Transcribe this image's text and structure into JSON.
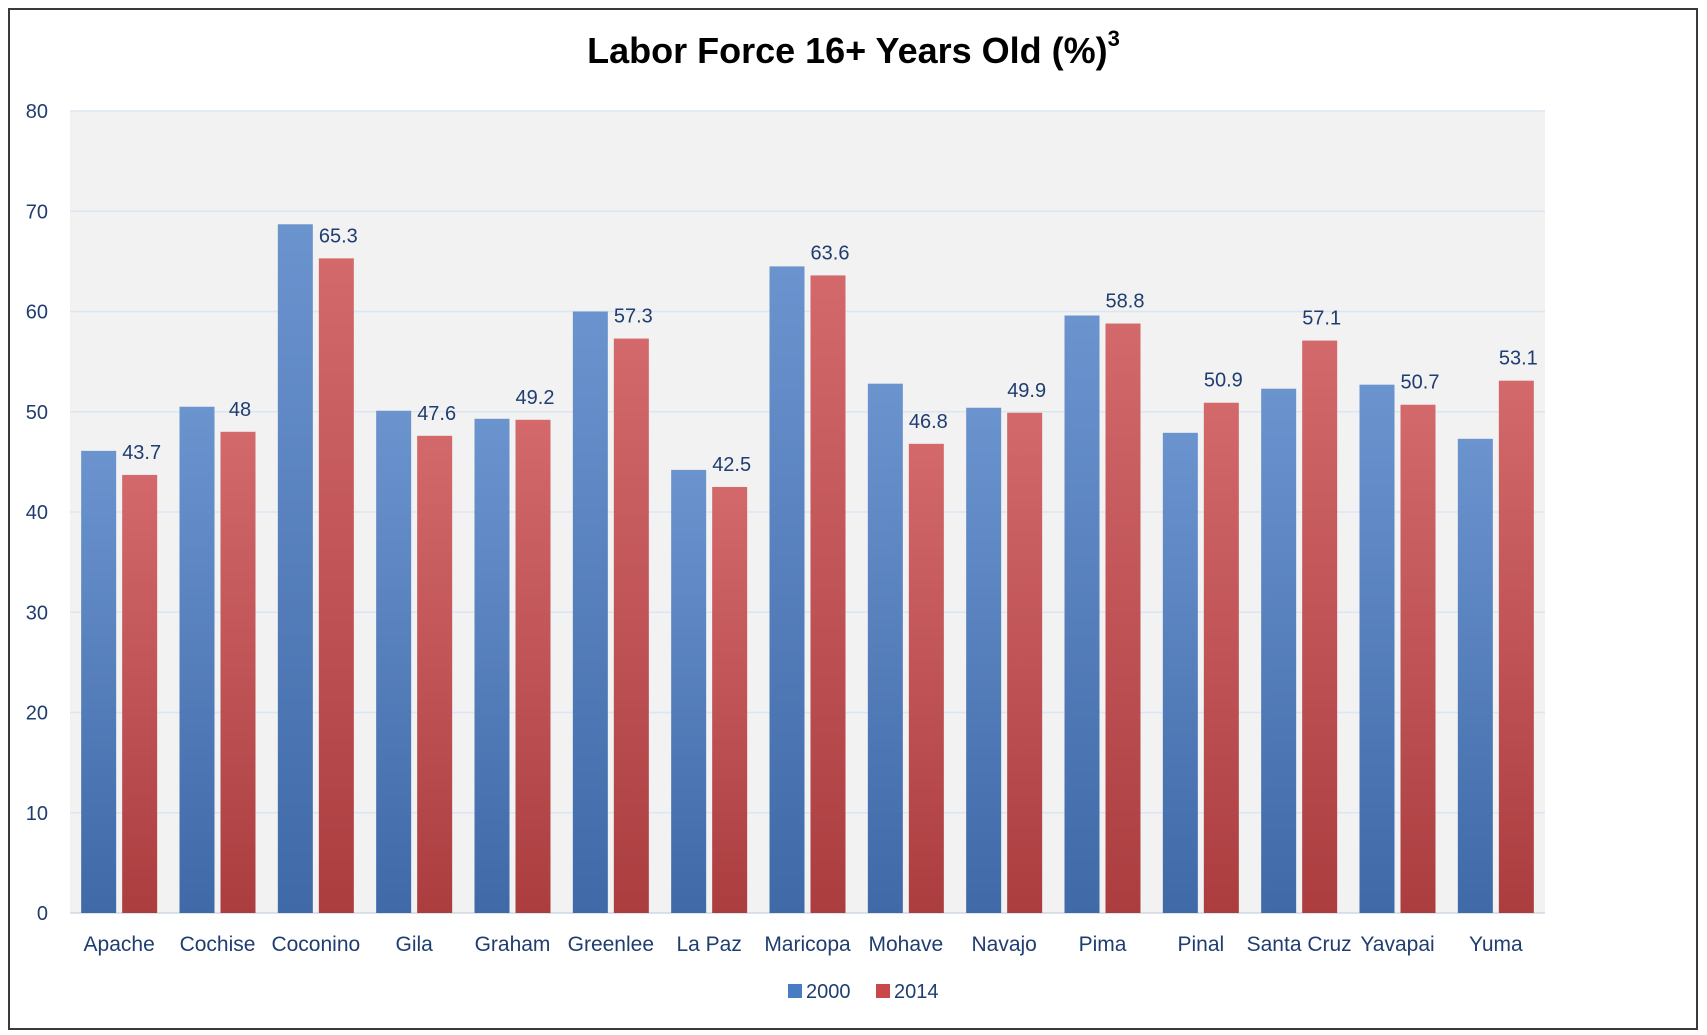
{
  "chart_data": {
    "type": "bar",
    "title": "Labor Force 16+ Years Old (%)",
    "title_superscript": "3",
    "xlabel": "",
    "ylabel": "",
    "ylim": [
      0,
      80
    ],
    "yticks": [
      0,
      10,
      20,
      30,
      40,
      50,
      60,
      70,
      80
    ],
    "grid": true,
    "legend_position": "bottom",
    "categories": [
      "Apache",
      "Cochise",
      "Coconino",
      "Gila",
      "Graham",
      "Greenlee",
      "La Paz",
      "Maricopa",
      "Mohave",
      "Navajo",
      "Pima",
      "Pinal",
      "Santa Cruz",
      "Yavapai",
      "Yuma"
    ],
    "series": [
      {
        "name": "2000",
        "color": "#4a7cc4",
        "values": [
          46.1,
          50.5,
          68.7,
          50.1,
          49.3,
          60.0,
          44.2,
          64.5,
          52.8,
          50.4,
          59.6,
          47.9,
          52.3,
          52.7,
          47.3
        ],
        "data_labels": false
      },
      {
        "name": "2014",
        "color": "#c9484a",
        "values": [
          43.7,
          48,
          65.3,
          47.6,
          49.2,
          57.3,
          42.5,
          63.6,
          46.8,
          49.9,
          58.8,
          50.9,
          57.1,
          50.7,
          53.1
        ],
        "data_labels": true
      }
    ]
  }
}
